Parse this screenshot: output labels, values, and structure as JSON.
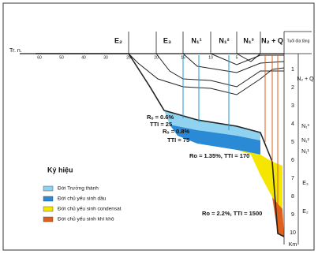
{
  "time_axis": {
    "label": "Tr. n.",
    "ticks": [
      "60",
      "50",
      "40",
      "30",
      "25",
      "20",
      "15",
      "10",
      "5"
    ]
  },
  "stratigraphy_header": [
    "E₂",
    "E₃",
    "N₁¹",
    "N₁²",
    "N₁³",
    "N₂ + Q"
  ],
  "age_column_title": "Tuổi địa tầng",
  "depth_column": {
    "units": [
      "N₂ + Q",
      "N₁³",
      "N₁²",
      "N₁¹",
      "E₃",
      "E₂"
    ],
    "depths": [
      "1",
      "2",
      "3",
      "4",
      "5",
      "6",
      "7",
      "8",
      "9",
      "10"
    ],
    "unit_label": "Km"
  },
  "annotations": [
    "Rₒ = 0.6%",
    "TTI = 25",
    "Rₒ = 0.8%",
    "TTI = 75",
    "Ro = 1.35%, TTI = 170",
    "Ro = 2.2%, TTI = 1500"
  ],
  "legend": {
    "title": "Ký hiệu",
    "items": [
      "Đới Trưởng thành",
      "Đới chủ yếu sinh dầu",
      "Đới chủ yếu sinh condensat",
      "Đới chủ yếu sinh khí khô"
    ]
  }
}
